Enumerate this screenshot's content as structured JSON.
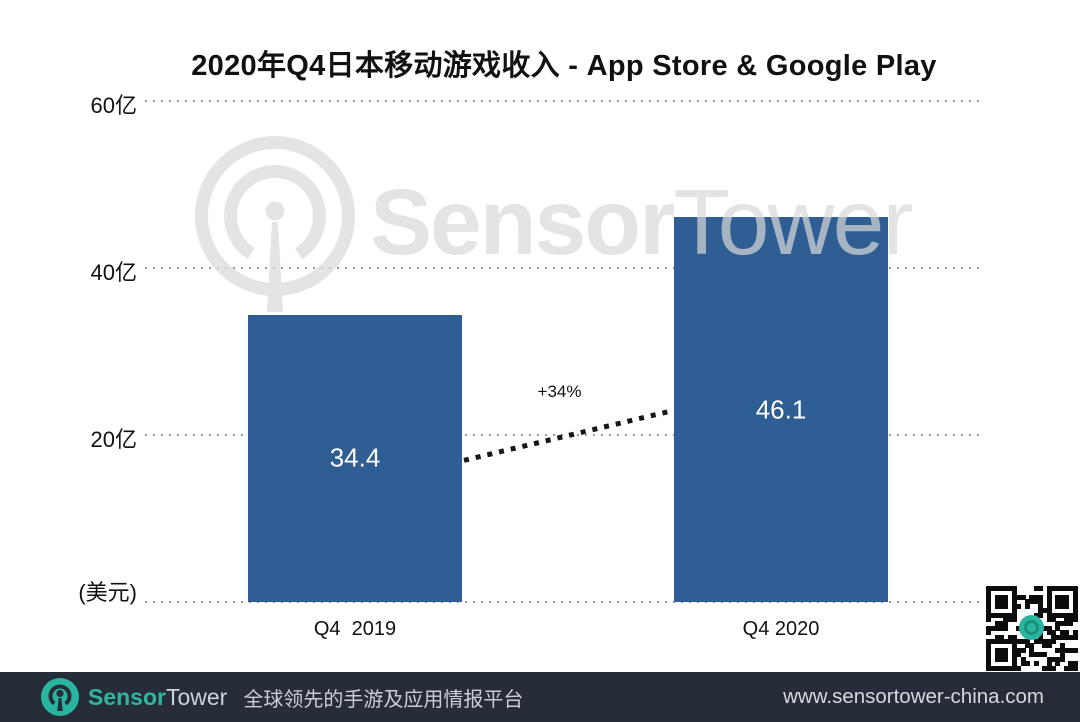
{
  "title": "2020年Q4日本移动游戏收入 - App Store & Google Play",
  "chart_data": {
    "type": "bar",
    "title": "2020年Q4日本移动游戏收入 - App Store & Google Play",
    "categories": [
      "Q4  2019",
      "Q4 2020"
    ],
    "values": [
      34.4,
      46.1
    ],
    "value_labels": [
      "34.4",
      "46.1"
    ],
    "growth_annotation": "+34%",
    "xlabel": "",
    "ylabel": "(美元)",
    "ylim": [
      0,
      60
    ],
    "y_ticks": [
      {
        "label": "60亿",
        "value": 60
      },
      {
        "label": "40亿",
        "value": 40
      },
      {
        "label": "20亿",
        "value": 20
      }
    ],
    "unit_label": "(美元)",
    "grid": "dotted horizontal",
    "legend": "none",
    "bar_color": "#2e5e94",
    "value_label_color": "#ffffff"
  },
  "watermark": {
    "bold_part": "Sensor",
    "light_part": "Tower"
  },
  "footer": {
    "brand_bold": "Sensor",
    "brand_regular": "Tower",
    "tagline": "全球领先的手游及应用情报平台",
    "url": "www.sensortower-china.com"
  },
  "icons": {
    "watermark_logo": "sensortower-antenna-logo",
    "footer_logo": "sensortower-antenna-logo",
    "qr": "qr-code-with-sensortower-logo"
  },
  "colors": {
    "bar": "#2e5e94",
    "grid_dots": "#9a9a9a",
    "trend_line": "#161616",
    "footer_bg": "#272d38",
    "brand_teal": "#2ab5a0",
    "watermark_gray": "#d9d9d9"
  }
}
